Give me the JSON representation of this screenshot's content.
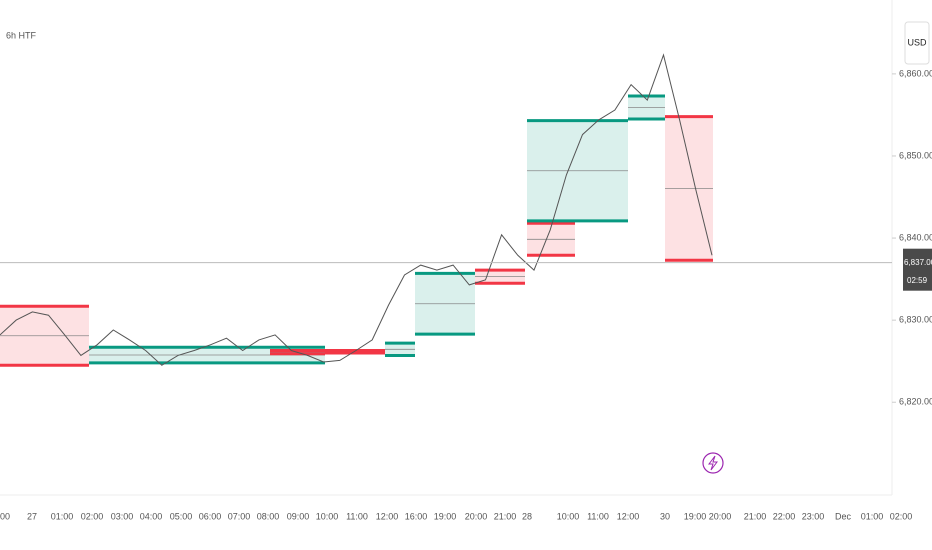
{
  "chart_data": {
    "type": "htf-candles",
    "title": "6h HTF",
    "currency": "USD",
    "ylim": [
      6808.7,
      6869
    ],
    "yticks": [
      {
        "value": 6860,
        "label": "6,860.00"
      },
      {
        "value": 6850,
        "label": "6,850.00"
      },
      {
        "value": 6840,
        "label": "6,840.00"
      },
      {
        "value": 6830,
        "label": "6,830.00"
      },
      {
        "value": 6820,
        "label": "6,820.00"
      }
    ],
    "x_labels": [
      "00",
      "27",
      "01:00",
      "02:00",
      "03:00",
      "04:00",
      "05:00",
      "06:00",
      "07:00",
      "08:00",
      "09:00",
      "10:00",
      "11:00",
      "12:00",
      "16:00",
      "19:00",
      "20:00",
      "21:00",
      "28",
      "10:00",
      "11:00",
      "12:00",
      "30",
      "19:00",
      "20:00",
      "21:00",
      "22:00",
      "23:00",
      "Dec",
      "01:00",
      "02:00"
    ],
    "price": {
      "color": "#555555",
      "values": [
        6828.2,
        6830.0,
        6831.0,
        6830.6,
        6828.2,
        6825.7,
        6827.0,
        6828.8,
        6827.6,
        6826.3,
        6824.5,
        6825.7,
        6826.3,
        6827.0,
        6827.8,
        6826.3,
        6827.6,
        6828.2,
        6826.3,
        6825.7,
        6824.9,
        6825.1,
        6826.3,
        6827.6,
        6831.8,
        6835.5,
        6836.7,
        6836.1,
        6836.7,
        6834.3,
        6834.9,
        6840.4,
        6837.9,
        6836.1,
        6841.0,
        6847.7,
        6852.6,
        6854.4,
        6855.6,
        6858.7,
        6856.8,
        6862.3,
        6854.4,
        6845.9,
        6837.9
      ]
    },
    "current_price": {
      "value": 6837,
      "label": "6,837.00"
    },
    "countdown": "02:59",
    "htf_boxes": [
      {
        "top": 6831.7,
        "bottom": 6824.5,
        "color": "#f23645"
      },
      {
        "top": 6826.7,
        "bottom": 6824.8,
        "color": "#089981"
      },
      {
        "top": 6826.3,
        "bottom": 6825.9,
        "color": "#f23645"
      },
      {
        "top": 6826.3,
        "bottom": 6826.0,
        "color": "#f23645"
      },
      {
        "top": 6827.2,
        "bottom": 6825.7,
        "color": "#089981"
      },
      {
        "top": 6835.7,
        "bottom": 6828.3,
        "color": "#089981"
      },
      {
        "top": 6836.1,
        "bottom": 6834.5,
        "color": "#f23645"
      },
      {
        "top": 6841.8,
        "bottom": 6837.9,
        "color": "#f23645"
      },
      {
        "top": 6854.3,
        "bottom": 6842.1,
        "color": "#089981"
      },
      {
        "top": 6857.3,
        "bottom": 6854.5,
        "color": "#089981"
      },
      {
        "top": 6854.8,
        "bottom": 6837.3,
        "color": "#f23645"
      }
    ]
  }
}
